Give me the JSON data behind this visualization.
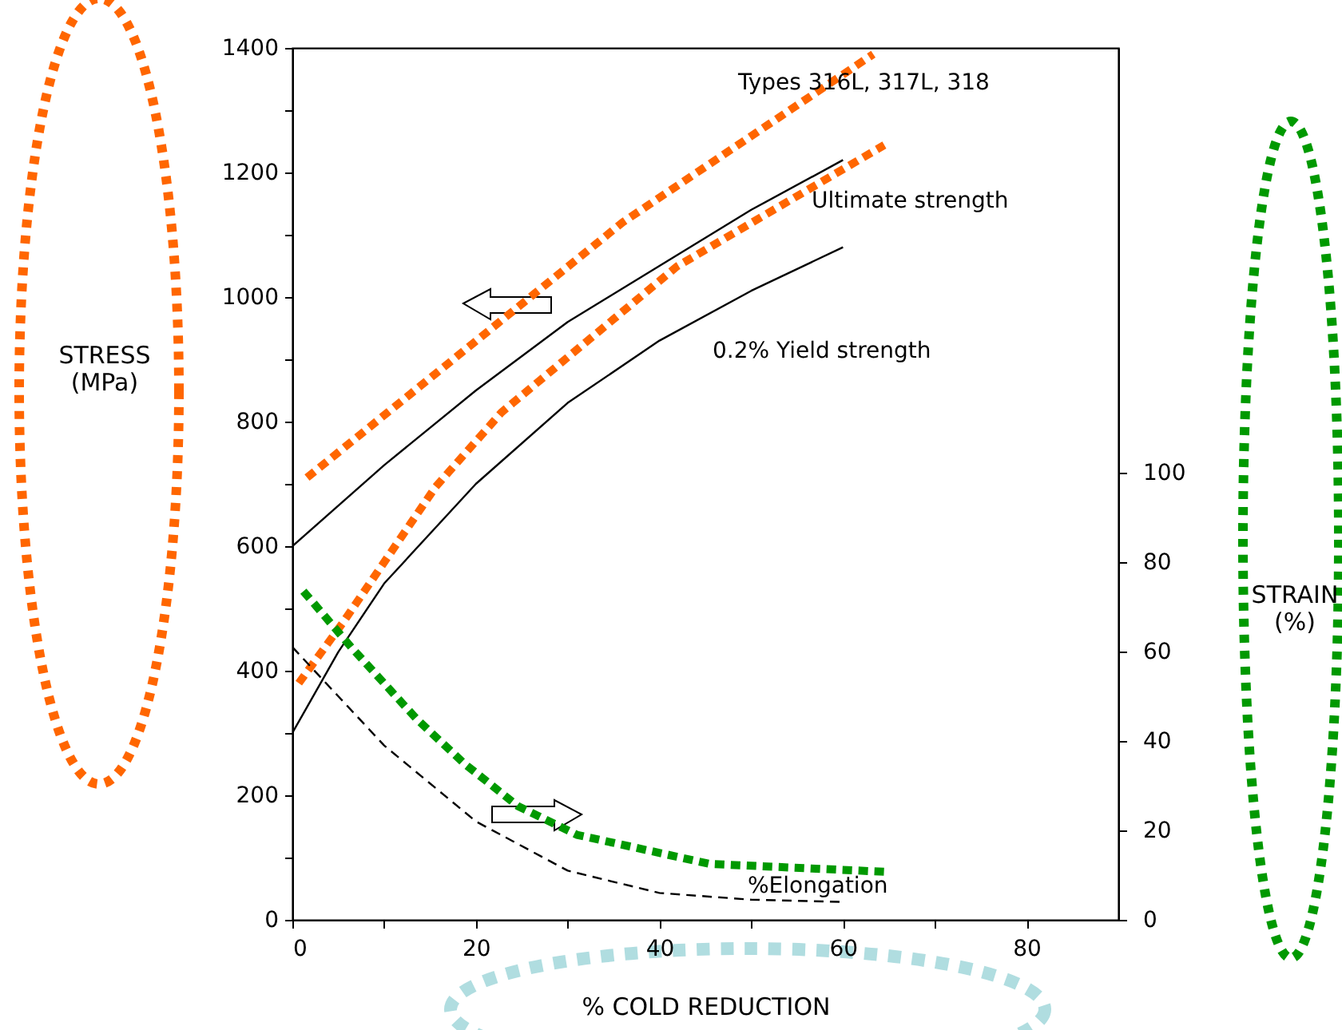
{
  "chart_data": {
    "type": "line",
    "xlabel": "% COLD REDUCTION",
    "ylabel": "STRESS (MPa)",
    "y2label": "STRAIN (%)",
    "xlim": [
      0,
      90
    ],
    "xticks": [
      0,
      {
        "value": 10,
        "label": null
      },
      20,
      {
        "value": 30,
        "label": null
      },
      40,
      {
        "value": 50,
        "label": null
      },
      60,
      {
        "value": 70,
        "label": null
      },
      80
    ],
    "ylim": [
      0,
      1400
    ],
    "yticks": [
      0,
      {
        "value": 100,
        "label": null
      },
      200,
      {
        "value": 300,
        "label": null
      },
      400,
      {
        "value": 500,
        "label": null
      },
      600,
      {
        "value": 700,
        "label": null
      },
      800,
      {
        "value": 900,
        "label": null
      },
      1000,
      {
        "value": 1100,
        "label": null
      },
      1200,
      {
        "value": 1300,
        "label": null
      },
      1400
    ],
    "y2lim": [
      0,
      195
    ],
    "y2ticks": [
      0,
      20,
      40,
      60,
      80,
      100
    ],
    "grid": false,
    "series": [
      {
        "color": "#000000",
        "line_style": "solid",
        "x": [
          0,
          10,
          20,
          30,
          40,
          50,
          60
        ],
        "values": [
          600,
          730,
          850,
          960,
          1050,
          1140,
          1220
        ]
      },
      {
        "color": "#000000",
        "line_style": "solid",
        "x": [
          0,
          5,
          10,
          20,
          30,
          40,
          50,
          60
        ],
        "values": [
          300,
          430,
          540,
          700,
          830,
          930,
          1010,
          1080
        ]
      },
      {
        "color": "#000000",
        "line_style": "dashed",
        "axis": "y2",
        "x": [
          0,
          5,
          10,
          20,
          30,
          40,
          50,
          60
        ],
        "values": [
          61,
          50,
          39,
          22,
          11,
          6,
          4.5,
          4
        ]
      },
      {
        "color": "#ff6600",
        "line_style": "dashed",
        "x": [
          1.6,
          36,
          63.3
        ],
        "values": [
          710,
          1120,
          1390
        ]
      },
      {
        "color": "#ff6600",
        "line_style": "dashed",
        "x": [
          0.7,
          5.5,
          15.6,
          22.8,
          41.9,
          64.5
        ],
        "values": [
          380,
          477,
          695,
          815,
          1049,
          1244
        ]
      },
      {
        "color": "#009900",
        "line_style": "dashed",
        "axis": "y2",
        "x": [
          1.2,
          6.4,
          13.5,
          18.7,
          24.6,
          31,
          45.5,
          65
        ],
        "values": [
          73.5,
          61,
          45,
          35,
          25.4,
          19,
          12.5,
          10.7
        ]
      }
    ],
    "annotations": [
      "Types 316L, 317L, 318",
      "Ultimate strength",
      "0.2% Yield strength",
      "%Elongation"
    ]
  }
}
